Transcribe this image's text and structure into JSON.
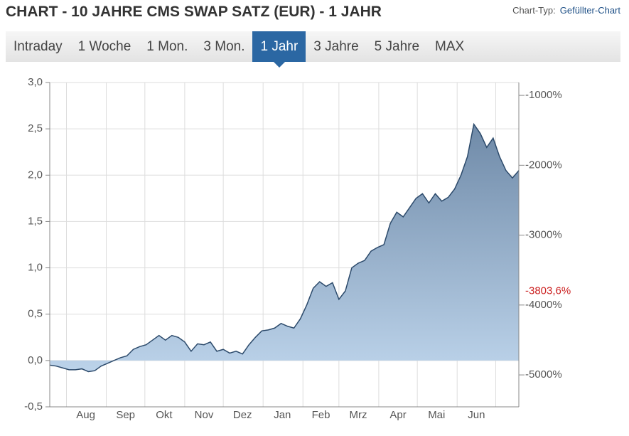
{
  "header": {
    "title": "CHART - 10 JAHRE CMS SWAP SATZ (EUR) - 1 JAHR",
    "chart_type_label": "Chart-Typ:",
    "chart_type_value": "Gefüllter-Chart"
  },
  "tabs": [
    "Intraday",
    "1 Woche",
    "1 Mon.",
    "3 Mon.",
    "1 Jahr",
    "3 Jahre",
    "5 Jahre",
    "MAX"
  ],
  "active_tab": 4,
  "chart_data": {
    "type": "area",
    "x": [
      0,
      5,
      10,
      15,
      20,
      25,
      30,
      35,
      40,
      45,
      50,
      55,
      60,
      65,
      70,
      75,
      80,
      85,
      90,
      95,
      100,
      105,
      110,
      115,
      120,
      125,
      130,
      135,
      140,
      145,
      150,
      155,
      160,
      165,
      170,
      175,
      180,
      185,
      190,
      195,
      200,
      205,
      210,
      215,
      220,
      225,
      230,
      235,
      240,
      245,
      250,
      255,
      260,
      265,
      270,
      275,
      280,
      285,
      290,
      295,
      300,
      305,
      310,
      315,
      320,
      325,
      330,
      335,
      340,
      345,
      350,
      355,
      360,
      365
    ],
    "values": [
      -0.05,
      -0.06,
      -0.08,
      -0.1,
      -0.1,
      -0.09,
      -0.12,
      -0.11,
      -0.06,
      -0.03,
      0.0,
      0.03,
      0.05,
      0.12,
      0.15,
      0.17,
      0.22,
      0.27,
      0.22,
      0.27,
      0.25,
      0.2,
      0.1,
      0.18,
      0.17,
      0.2,
      0.1,
      0.12,
      0.08,
      0.1,
      0.07,
      0.17,
      0.25,
      0.32,
      0.33,
      0.35,
      0.4,
      0.37,
      0.35,
      0.45,
      0.6,
      0.78,
      0.85,
      0.8,
      0.84,
      0.66,
      0.75,
      1.0,
      1.05,
      1.08,
      1.18,
      1.22,
      1.25,
      1.48,
      1.6,
      1.55,
      1.65,
      1.75,
      1.8,
      1.7,
      1.8,
      1.72,
      1.76,
      1.85,
      2.0,
      2.2,
      2.55,
      2.45,
      2.3,
      2.4,
      2.2,
      2.05,
      1.97,
      2.05
    ],
    "xlim": [
      0,
      365
    ],
    "xticks": [
      {
        "value": 28,
        "label": "Aug"
      },
      {
        "value": 59,
        "label": "Sep"
      },
      {
        "value": 89,
        "label": "Okt"
      },
      {
        "value": 120,
        "label": "Nov"
      },
      {
        "value": 150,
        "label": "Dez"
      },
      {
        "value": 181,
        "label": "Jan"
      },
      {
        "value": 211,
        "label": "Feb"
      },
      {
        "value": 240,
        "label": "Mrz"
      },
      {
        "value": 271,
        "label": "Apr"
      },
      {
        "value": 301,
        "label": "Mai"
      },
      {
        "value": 332,
        "label": "Jun"
      }
    ],
    "x_grid": [
      13,
      44,
      74,
      105,
      135,
      166,
      197,
      225,
      256,
      286,
      317,
      347
    ],
    "ylim": [
      -0.5,
      3.0
    ],
    "yticks": [
      {
        "value": -0.5,
        "label": "-0,5"
      },
      {
        "value": 0,
        "label": "0,0"
      },
      {
        "value": 0.5,
        "label": "0,5"
      },
      {
        "value": 1,
        "label": "1,0"
      },
      {
        "value": 1.5,
        "label": "1,5"
      },
      {
        "value": 2,
        "label": "2,0"
      },
      {
        "value": 2.5,
        "label": "2,5"
      },
      {
        "value": 3,
        "label": "3,0"
      }
    ],
    "y2lim": [
      -5457,
      -816
    ],
    "y2ticks": [
      {
        "value": -5000,
        "label": "-5000%"
      },
      {
        "value": -4000,
        "label": "-4000%"
      },
      {
        "value": -3000,
        "label": "-3000%"
      },
      {
        "value": -2000,
        "label": "-2000%"
      },
      {
        "value": -1000,
        "label": "-1000%"
      }
    ],
    "annotations": [
      {
        "value": -3803.6,
        "label": "-3803,6%",
        "axis": "y2",
        "color": "#cc2222"
      }
    ],
    "line_color": "#2c4a6b",
    "fill_top": "#6f8aa8",
    "fill_bottom": "#bcd3ea",
    "grid": true
  }
}
